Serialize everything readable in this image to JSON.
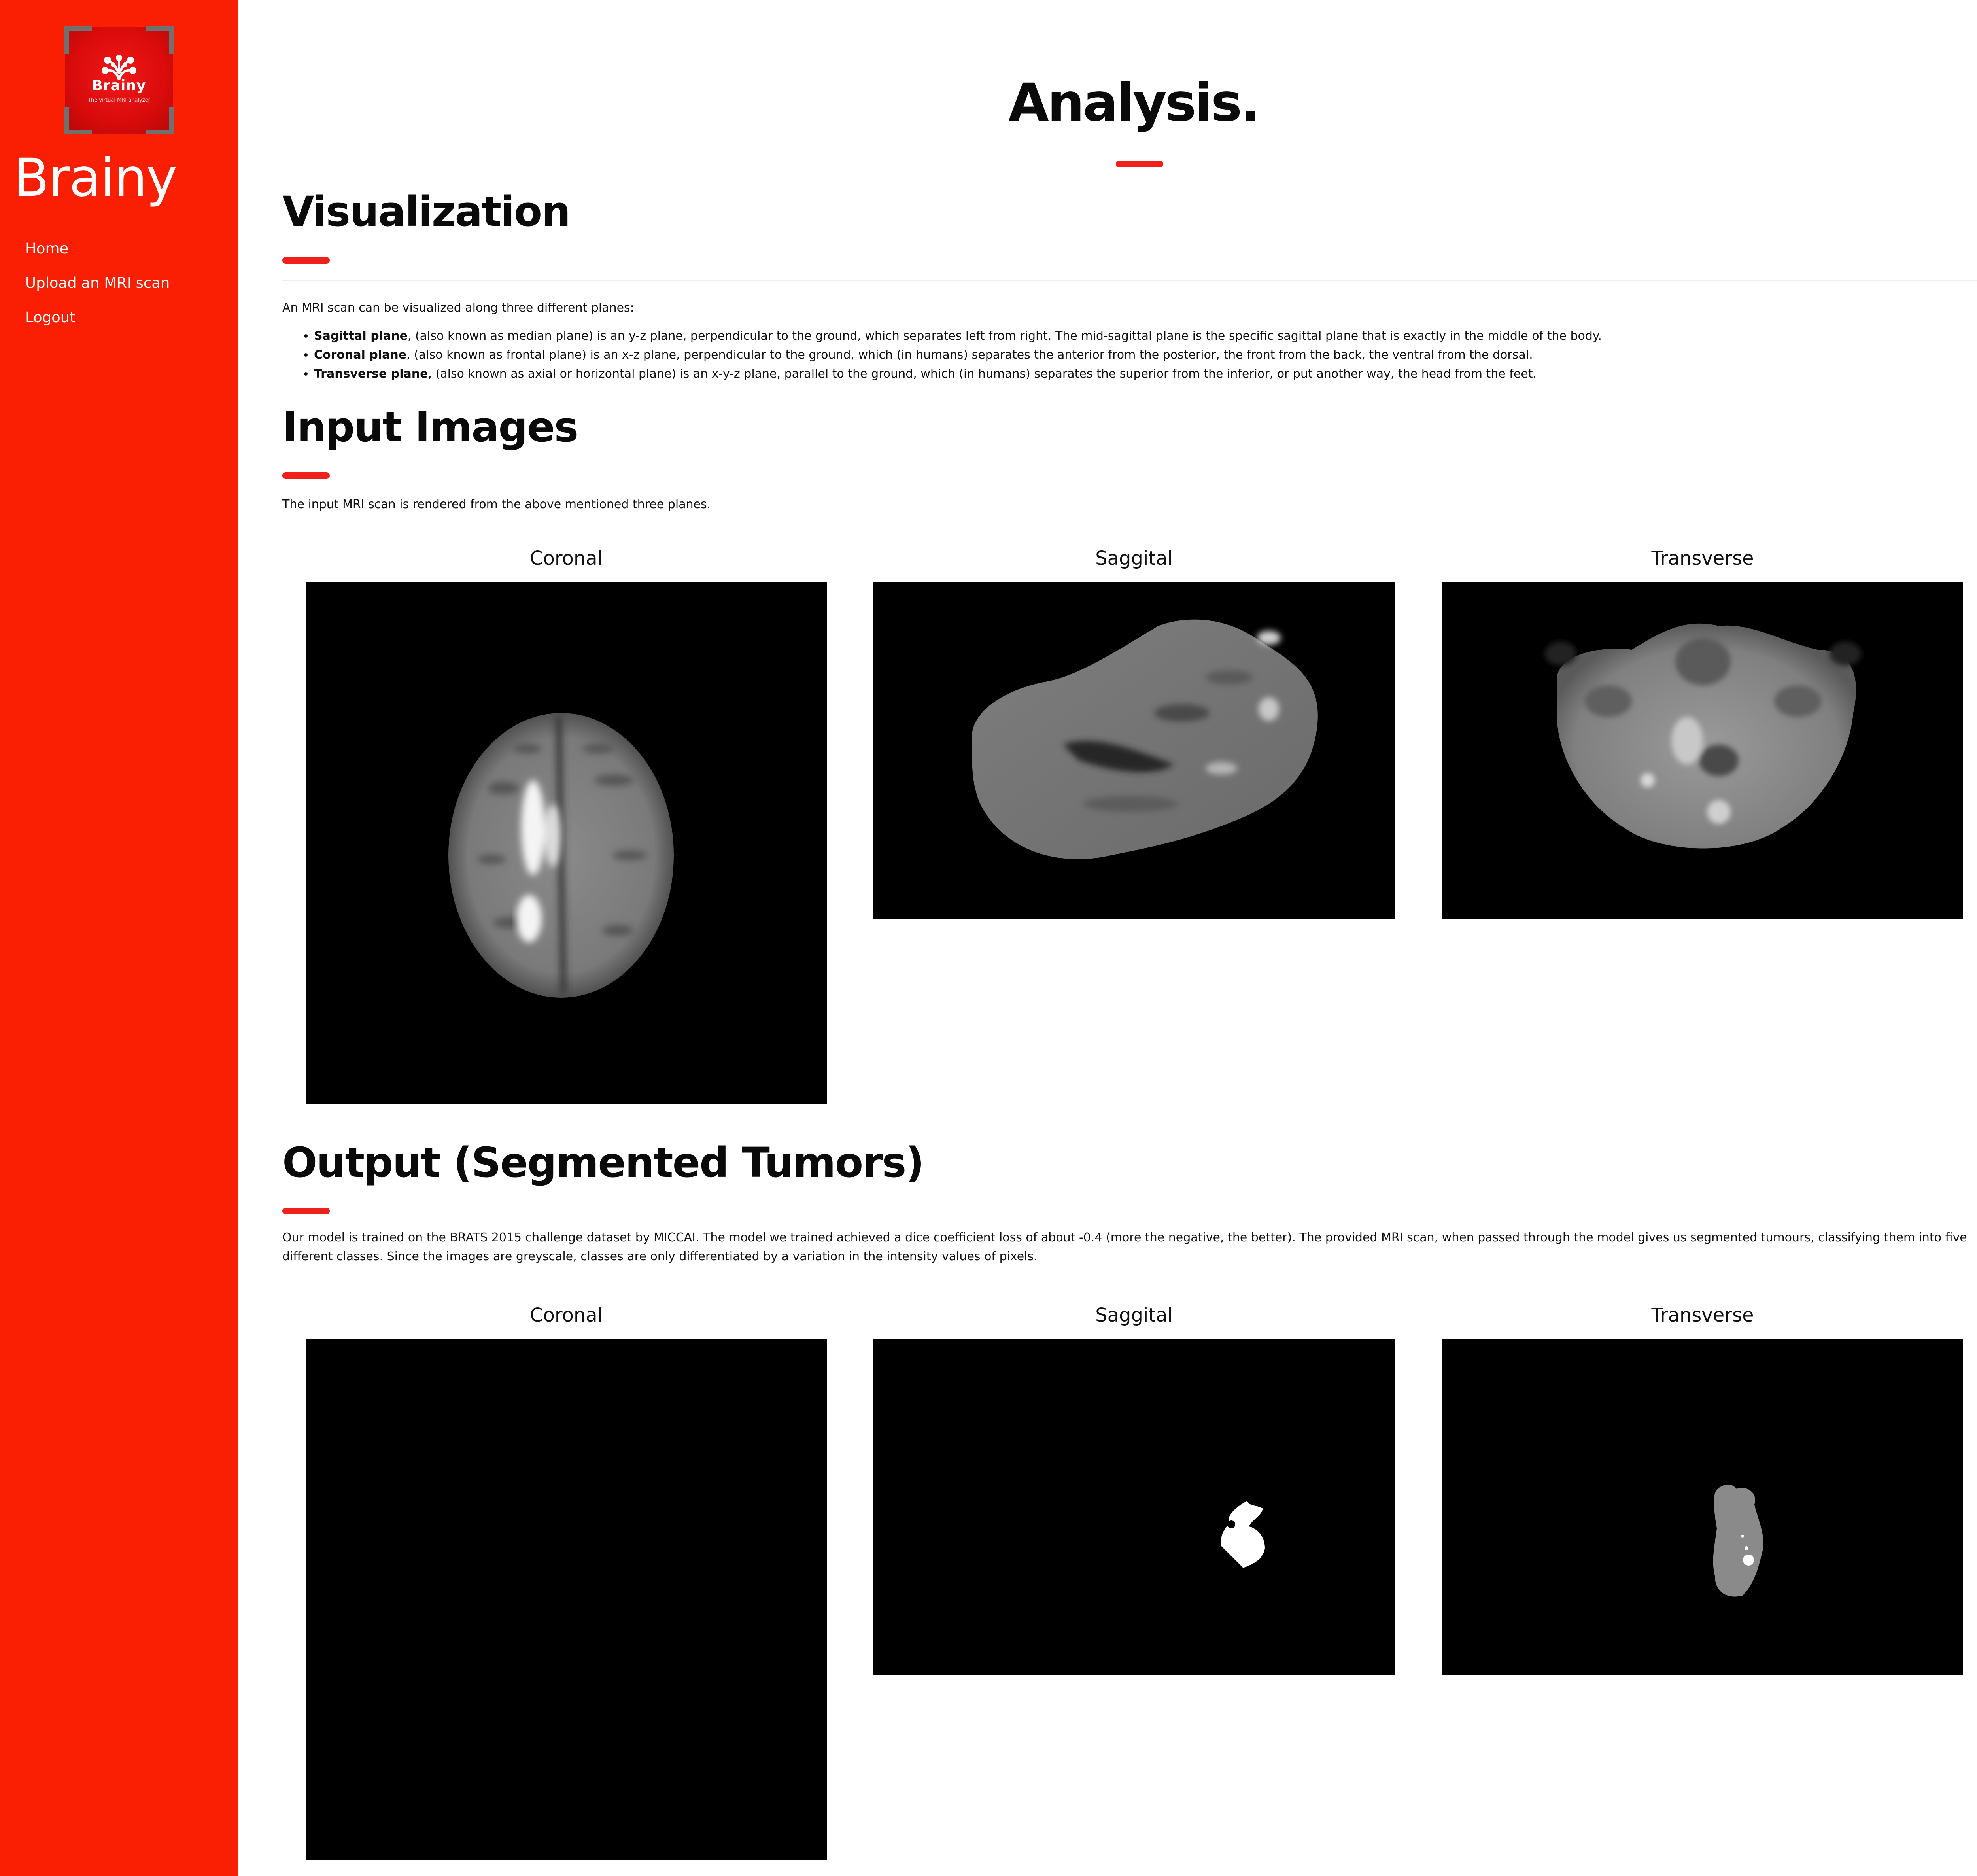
{
  "sidebar": {
    "logo": {
      "name": "Brainy",
      "tagline": "The virtual MRI analyzer",
      "icon": "brain-icon"
    },
    "brand": "Brainy",
    "nav": [
      {
        "label": "Home"
      },
      {
        "label": "Upload an MRI scan"
      },
      {
        "label": "Logout"
      }
    ],
    "accent": "#fa1e02"
  },
  "main": {
    "title": "Analysis.",
    "visualization": {
      "heading": "Visualization",
      "intro": "An MRI scan can be visualized along three different planes:",
      "planes": [
        {
          "term": "Sagittal plane",
          "text": ", (also known as median plane) is an y-z plane, perpendicular to the ground, which separates left from right. The mid-sagittal plane is the specific sagittal plane that is exactly in the middle of the body."
        },
        {
          "term": "Coronal plane",
          "text": ", (also known as frontal plane) is an x-z plane, perpendicular to the ground, which (in humans) separates the anterior from the posterior, the front from the back, the ventral from the dorsal."
        },
        {
          "term": "Transverse plane",
          "text": ", (also known as axial or horizontal plane) is an x-y-z plane, parallel to the ground, which (in humans) separates the superior from the inferior, or put another way, the head from the feet."
        }
      ]
    },
    "input_images": {
      "heading": "Input Images",
      "description": "The input MRI scan is rendered from the above mentioned three planes.",
      "figures": [
        {
          "label": "Coronal"
        },
        {
          "label": "Saggital"
        },
        {
          "label": "Transverse"
        }
      ]
    },
    "output": {
      "heading": "Output (Segmented Tumors)",
      "description": "Our model is trained on the BRATS 2015 challenge dataset by MICCAI. The model we trained achieved a dice coefficient loss of about -0.4 (more the negative, the better). The provided MRI scan, when passed through the model gives us segmented tumours, classifying them into five different classes. Since the images are greyscale, classes are only differentiated by a variation in the intensity values of pixels.",
      "figures": [
        {
          "label": "Coronal"
        },
        {
          "label": "Saggital"
        },
        {
          "label": "Transverse"
        }
      ]
    }
  }
}
